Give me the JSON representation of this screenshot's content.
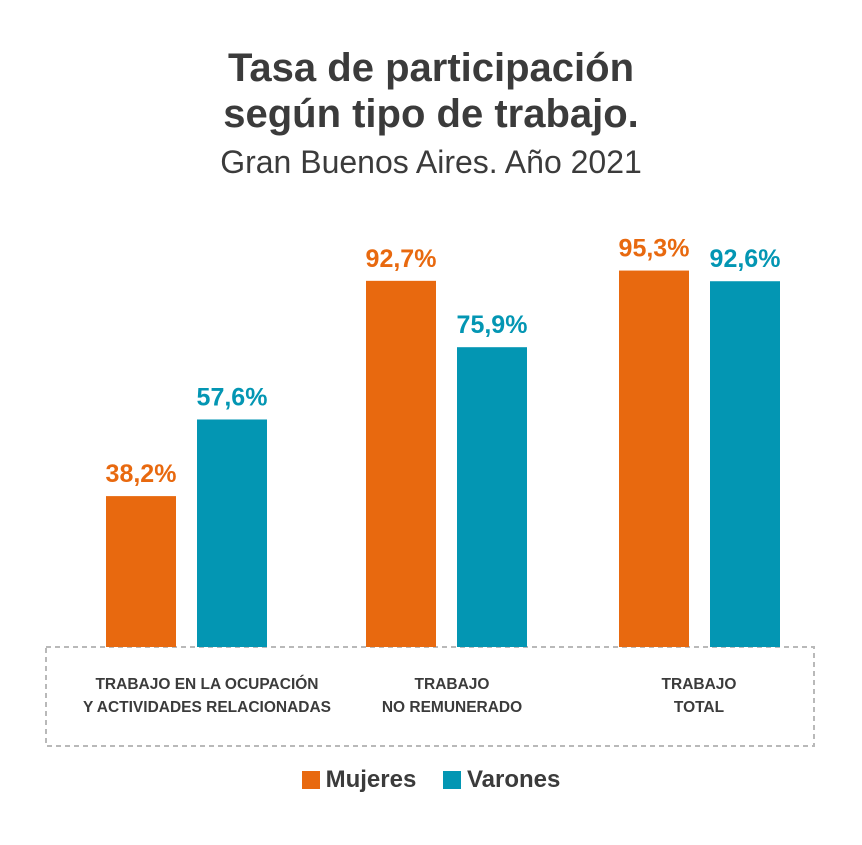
{
  "colors": {
    "mujeres": "#e8690f",
    "varones": "#0396b3"
  },
  "chart_data": {
    "type": "bar",
    "title_line1": "Tasa de participación",
    "title_line2": "según tipo de trabajo.",
    "subtitle": "Gran Buenos Aires. Año 2021",
    "categories": [
      {
        "line1": "TRABAJO EN LA OCUPACIÓN",
        "line2": "Y ACTIVIDADES RELACIONADAS"
      },
      {
        "line1": "TRABAJO",
        "line2": "NO REMUNERADO"
      },
      {
        "line1": "TRABAJO",
        "line2": "TOTAL"
      }
    ],
    "series": [
      {
        "name": "Mujeres",
        "values": [
          38.2,
          92.7,
          95.3
        ],
        "labels": [
          "38,2%",
          "92,7%",
          "95,3%"
        ]
      },
      {
        "name": "Varones",
        "values": [
          57.6,
          75.9,
          92.6
        ],
        "labels": [
          "57,6%",
          "75,9%",
          "92,6%"
        ]
      }
    ],
    "ylim": [
      0,
      100
    ],
    "legend": "bottom-center",
    "grid": false
  }
}
